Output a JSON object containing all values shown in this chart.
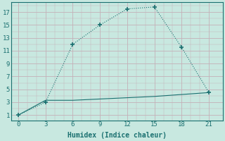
{
  "line1_x": [
    0,
    3,
    6,
    9,
    12,
    15,
    18,
    21
  ],
  "line1_y": [
    1,
    3,
    12,
    15,
    17.5,
    17.8,
    11.5,
    4.5
  ],
  "line2_x": [
    0,
    3,
    6,
    9,
    12,
    15,
    18,
    21
  ],
  "line2_y": [
    1,
    3.3,
    3.3,
    3.5,
    3.7,
    3.9,
    4.2,
    4.5
  ],
  "line_color": "#1a7070",
  "bg_color": "#c8e8e0",
  "grid_color": "#c4b0b8",
  "xlabel": "Humidex (Indice chaleur)",
  "xticks": [
    0,
    3,
    6,
    9,
    12,
    15,
    18,
    21
  ],
  "yticks": [
    1,
    3,
    5,
    7,
    9,
    11,
    13,
    15,
    17
  ],
  "ylim": [
    0.2,
    18.5
  ],
  "xlim": [
    -0.8,
    22.5
  ],
  "minor_xtick_step": 1,
  "minor_ytick_step": 1
}
